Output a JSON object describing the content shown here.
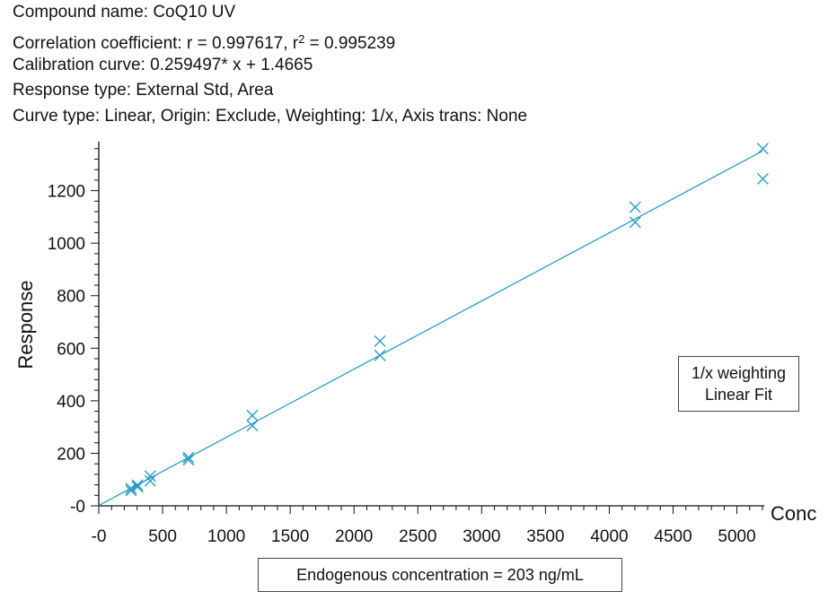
{
  "header": {
    "compound": "Compound name: CoQ10 UV",
    "correlation_prefix": "Correlation coefficient: r = 0.997617, r",
    "correlation_sup": "2",
    "correlation_suffix": " = 0.995239",
    "calibration": "Calibration curve: 0.259497* x + 1.4665",
    "response_type": "Response type: External Std, Area",
    "curve_type": "Curve type: Linear, Origin: Exclude, Weighting: 1/x, Axis trans: None"
  },
  "legend": {
    "line1": "1/x weighting",
    "line2": "Linear Fit"
  },
  "footer": {
    "text": "Endogenous concentration = 203 ng/mL"
  },
  "colors": {
    "series": "#2a9cc4",
    "axis": "#111111"
  },
  "chart_data": {
    "type": "scatter",
    "xlabel": "Conc",
    "ylabel": "Response",
    "xlim": [
      0,
      5200
    ],
    "ylim": [
      0,
      1400
    ],
    "x_ticks": [
      {
        "value": 0,
        "label": "-0"
      },
      {
        "value": 500,
        "label": "500"
      },
      {
        "value": 1000,
        "label": "1000"
      },
      {
        "value": 1500,
        "label": "1500"
      },
      {
        "value": 2000,
        "label": "2000"
      },
      {
        "value": 2500,
        "label": "2500"
      },
      {
        "value": 3000,
        "label": "3000"
      },
      {
        "value": 3500,
        "label": "3500"
      },
      {
        "value": 4000,
        "label": "4000"
      },
      {
        "value": 4500,
        "label": "4500"
      },
      {
        "value": 5000,
        "label": "5000"
      }
    ],
    "y_ticks": [
      {
        "value": 0,
        "label": "-0"
      },
      {
        "value": 200,
        "label": "200"
      },
      {
        "value": 400,
        "label": "400"
      },
      {
        "value": 600,
        "label": "600"
      },
      {
        "value": 800,
        "label": "800"
      },
      {
        "value": 1000,
        "label": "1000"
      },
      {
        "value": 1200,
        "label": "1200"
      }
    ],
    "fit": {
      "slope": 0.259497,
      "intercept": 1.4665,
      "x_range": [
        0,
        5200
      ]
    },
    "points": [
      {
        "x": 253,
        "y": 66
      },
      {
        "x": 253,
        "y": 58
      },
      {
        "x": 303,
        "y": 72
      },
      {
        "x": 303,
        "y": 79
      },
      {
        "x": 403,
        "y": 113
      },
      {
        "x": 403,
        "y": 95
      },
      {
        "x": 703,
        "y": 184
      },
      {
        "x": 703,
        "y": 175
      },
      {
        "x": 1203,
        "y": 344
      },
      {
        "x": 1203,
        "y": 305
      },
      {
        "x": 2203,
        "y": 627
      },
      {
        "x": 2203,
        "y": 573
      },
      {
        "x": 4203,
        "y": 1137
      },
      {
        "x": 4203,
        "y": 1080
      },
      {
        "x": 5203,
        "y": 1360
      },
      {
        "x": 5203,
        "y": 1245
      }
    ]
  }
}
